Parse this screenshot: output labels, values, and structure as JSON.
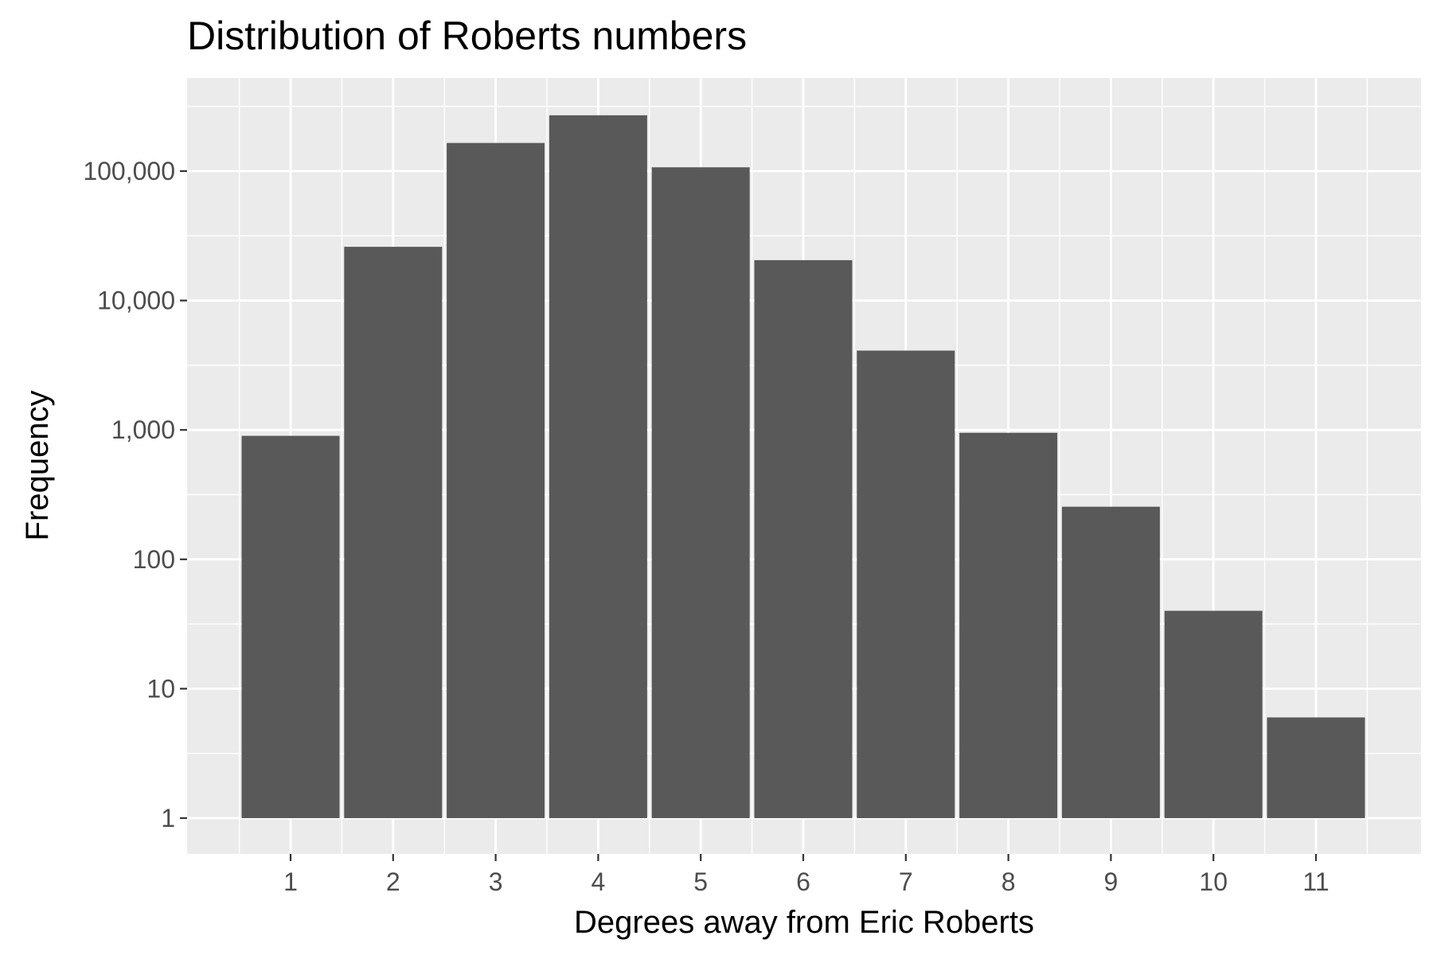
{
  "chart_data": {
    "type": "bar",
    "title": "Distribution of Roberts numbers",
    "xlabel": "Degrees away from Eric Roberts",
    "ylabel": "Frequency",
    "y_scale": "log10",
    "ylim": [
      0.7,
      450000
    ],
    "y_ticks": [
      1,
      10,
      100,
      1000,
      10000,
      100000
    ],
    "y_tick_labels": [
      "1",
      "10",
      "100",
      "1,000",
      "10,000",
      "100,000"
    ],
    "categories": [
      "1",
      "2",
      "3",
      "4",
      "5",
      "6",
      "7",
      "8",
      "9",
      "10",
      "11"
    ],
    "values": [
      900,
      26000,
      165000,
      270000,
      107000,
      20500,
      4100,
      950,
      255,
      40,
      6
    ],
    "bar_color": "#595959",
    "panel_background": "#ebebeb",
    "gridline_color": "#ffffff",
    "grid": true,
    "legend": "none"
  }
}
